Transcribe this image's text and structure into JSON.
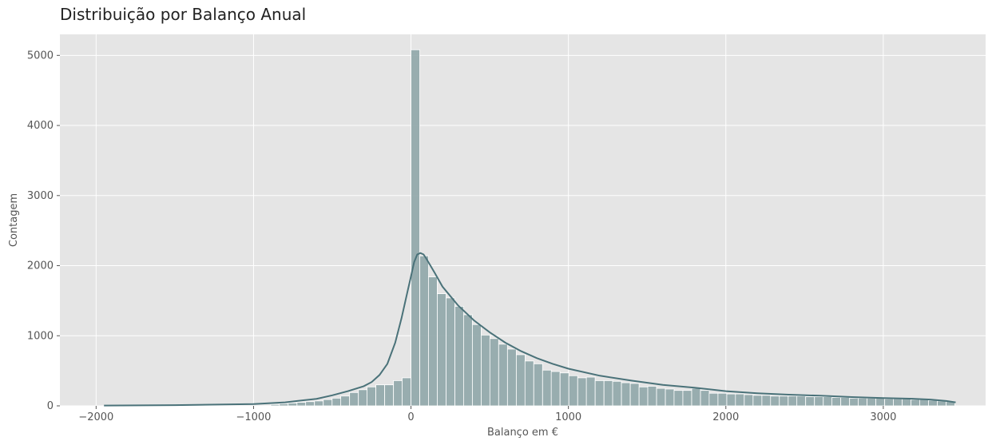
{
  "chart_data": {
    "type": "bar",
    "title": "Distribuição por Balanço Anual",
    "xlabel": "Balanço em €",
    "ylabel": "Contagem",
    "xlim": [
      -2230,
      3650
    ],
    "ylim": [
      0,
      5300
    ],
    "x_ticks": [
      -2000,
      -1000,
      0,
      1000,
      2000,
      3000
    ],
    "x_tick_labels": [
      "−2000",
      "−1000",
      "0",
      "1000",
      "2000",
      "3000"
    ],
    "y_ticks": [
      0,
      1000,
      2000,
      3000,
      4000,
      5000
    ],
    "y_tick_labels": [
      "0",
      "1000",
      "2000",
      "3000",
      "4000",
      "5000"
    ],
    "grid": true,
    "bin_width": 55.7,
    "bins": [
      {
        "x0": -891,
        "count": 20
      },
      {
        "x0": -836,
        "count": 30
      },
      {
        "x0": -780,
        "count": 40
      },
      {
        "x0": -724,
        "count": 50
      },
      {
        "x0": -669,
        "count": 60
      },
      {
        "x0": -613,
        "count": 70
      },
      {
        "x0": -557,
        "count": 90
      },
      {
        "x0": -501,
        "count": 110
      },
      {
        "x0": -446,
        "count": 140
      },
      {
        "x0": -390,
        "count": 190
      },
      {
        "x0": -334,
        "count": 230
      },
      {
        "x0": -279,
        "count": 270
      },
      {
        "x0": -223,
        "count": 300
      },
      {
        "x0": -167,
        "count": 300
      },
      {
        "x0": -111,
        "count": 360
      },
      {
        "x0": -56,
        "count": 400
      },
      {
        "x0": 0,
        "count": 5080
      },
      {
        "x0": 56,
        "count": 2140
      },
      {
        "x0": 111,
        "count": 1840
      },
      {
        "x0": 167,
        "count": 1600
      },
      {
        "x0": 223,
        "count": 1540
      },
      {
        "x0": 279,
        "count": 1420
      },
      {
        "x0": 334,
        "count": 1300
      },
      {
        "x0": 390,
        "count": 1160
      },
      {
        "x0": 446,
        "count": 1010
      },
      {
        "x0": 501,
        "count": 960
      },
      {
        "x0": 557,
        "count": 880
      },
      {
        "x0": 613,
        "count": 810
      },
      {
        "x0": 669,
        "count": 730
      },
      {
        "x0": 724,
        "count": 640
      },
      {
        "x0": 780,
        "count": 600
      },
      {
        "x0": 836,
        "count": 510
      },
      {
        "x0": 891,
        "count": 490
      },
      {
        "x0": 947,
        "count": 470
      },
      {
        "x0": 1003,
        "count": 430
      },
      {
        "x0": 1059,
        "count": 400
      },
      {
        "x0": 1114,
        "count": 410
      },
      {
        "x0": 1170,
        "count": 360
      },
      {
        "x0": 1226,
        "count": 360
      },
      {
        "x0": 1281,
        "count": 350
      },
      {
        "x0": 1337,
        "count": 330
      },
      {
        "x0": 1393,
        "count": 320
      },
      {
        "x0": 1449,
        "count": 270
      },
      {
        "x0": 1504,
        "count": 280
      },
      {
        "x0": 1560,
        "count": 250
      },
      {
        "x0": 1616,
        "count": 240
      },
      {
        "x0": 1671,
        "count": 220
      },
      {
        "x0": 1727,
        "count": 220
      },
      {
        "x0": 1783,
        "count": 250
      },
      {
        "x0": 1839,
        "count": 220
      },
      {
        "x0": 1894,
        "count": 180
      },
      {
        "x0": 1950,
        "count": 180
      },
      {
        "x0": 2006,
        "count": 170
      },
      {
        "x0": 2061,
        "count": 170
      },
      {
        "x0": 2117,
        "count": 160
      },
      {
        "x0": 2173,
        "count": 150
      },
      {
        "x0": 2229,
        "count": 150
      },
      {
        "x0": 2284,
        "count": 140
      },
      {
        "x0": 2340,
        "count": 140
      },
      {
        "x0": 2396,
        "count": 140
      },
      {
        "x0": 2451,
        "count": 140
      },
      {
        "x0": 2507,
        "count": 130
      },
      {
        "x0": 2563,
        "count": 130
      },
      {
        "x0": 2619,
        "count": 130
      },
      {
        "x0": 2674,
        "count": 120
      },
      {
        "x0": 2730,
        "count": 120
      },
      {
        "x0": 2786,
        "count": 110
      },
      {
        "x0": 2841,
        "count": 110
      },
      {
        "x0": 2897,
        "count": 110
      },
      {
        "x0": 2953,
        "count": 110
      },
      {
        "x0": 3009,
        "count": 100
      },
      {
        "x0": 3064,
        "count": 100
      },
      {
        "x0": 3120,
        "count": 100
      },
      {
        "x0": 3176,
        "count": 90
      },
      {
        "x0": 3231,
        "count": 90
      },
      {
        "x0": 3287,
        "count": 80
      },
      {
        "x0": 3343,
        "count": 70
      },
      {
        "x0": 3399,
        "count": 60
      }
    ],
    "kde": {
      "x": [
        -1950,
        -1500,
        -1000,
        -800,
        -600,
        -500,
        -400,
        -300,
        -250,
        -200,
        -150,
        -100,
        -60,
        -20,
        0,
        20,
        40,
        60,
        80,
        100,
        150,
        200,
        300,
        400,
        500,
        600,
        700,
        800,
        900,
        1000,
        1200,
        1400,
        1600,
        1800,
        2000,
        2200,
        2400,
        2600,
        2800,
        3000,
        3200,
        3300,
        3400,
        3460
      ],
      "y": [
        5,
        10,
        25,
        50,
        100,
        150,
        210,
        280,
        340,
        440,
        600,
        900,
        1250,
        1650,
        1850,
        2050,
        2160,
        2180,
        2160,
        2090,
        1900,
        1700,
        1430,
        1220,
        1050,
        900,
        780,
        680,
        600,
        530,
        430,
        360,
        300,
        260,
        210,
        180,
        160,
        145,
        125,
        110,
        100,
        90,
        70,
        50
      ]
    },
    "bar_color": "#8fa6a8",
    "line_color": "#4a7279",
    "plot_background": "#e5e5e5",
    "grid_color": "#ffffff"
  }
}
